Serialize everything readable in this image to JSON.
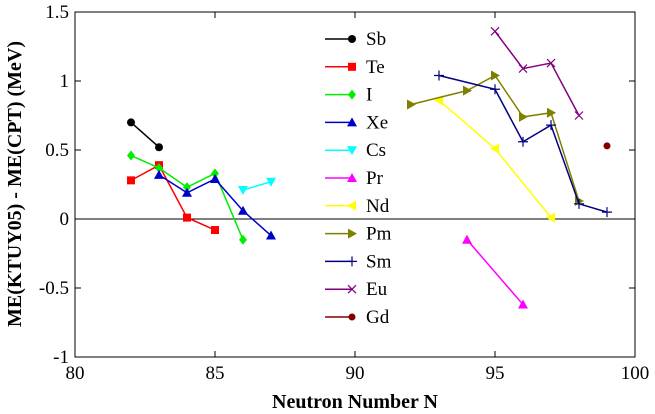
{
  "chart_data": {
    "type": "line",
    "xlabel": "Neutron Number N",
    "ylabel": "ME(KTUY05) - ME(CPT) (MeV)",
    "xlim": [
      80,
      100
    ],
    "ylim": [
      -1,
      1.5
    ],
    "xticks": [
      80,
      85,
      90,
      95,
      100
    ],
    "yticks": [
      -1,
      -0.5,
      0,
      0.5,
      1,
      1.5
    ],
    "xtick_labels": [
      "80",
      "85",
      "90",
      "95",
      "100"
    ],
    "ytick_labels": [
      "-1",
      "-0.5",
      "0",
      "0.5",
      "1",
      "1.5"
    ],
    "zero_line": true,
    "grid": false,
    "legend_position": "top-center",
    "series": [
      {
        "name": "Sb",
        "color": "#000000",
        "marker": "circle",
        "x": [
          82,
          83
        ],
        "y": [
          0.7,
          0.52
        ]
      },
      {
        "name": "Te",
        "color": "#ff0000",
        "marker": "square",
        "x": [
          82,
          83,
          84,
          85
        ],
        "y": [
          0.28,
          0.39,
          0.01,
          -0.08
        ]
      },
      {
        "name": "I",
        "color": "#00ee00",
        "marker": "diamond",
        "x": [
          82,
          83,
          84,
          85,
          86
        ],
        "y": [
          0.46,
          0.37,
          0.23,
          0.33,
          -0.15
        ]
      },
      {
        "name": "Xe",
        "color": "#0000cc",
        "marker": "triangle-up",
        "x": [
          83,
          84,
          85,
          86,
          87
        ],
        "y": [
          0.32,
          0.19,
          0.29,
          0.06,
          -0.12
        ]
      },
      {
        "name": "Cs",
        "color": "#00ffff",
        "marker": "triangle-down",
        "x": [
          86,
          87
        ],
        "y": [
          0.21,
          0.27
        ]
      },
      {
        "name": "Pr",
        "color": "#ff00ff",
        "marker": "triangle-up",
        "x": [
          94,
          96
        ],
        "y": [
          -0.15,
          -0.62
        ]
      },
      {
        "name": "Nd",
        "color": "#ffff00",
        "marker": "triangle-left",
        "x": [
          93,
          95,
          97
        ],
        "y": [
          0.86,
          0.51,
          0.01
        ]
      },
      {
        "name": "Pm",
        "color": "#808000",
        "marker": "triangle-right",
        "x": [
          92,
          94,
          95,
          96,
          97,
          98
        ],
        "y": [
          0.83,
          0.93,
          1.04,
          0.74,
          0.77,
          0.13
        ]
      },
      {
        "name": "Sm",
        "color": "#000080",
        "marker": "plus",
        "x": [
          93,
          95,
          96,
          97,
          98,
          99
        ],
        "y": [
          1.04,
          0.94,
          0.56,
          0.68,
          0.11,
          0.05
        ]
      },
      {
        "name": "Eu",
        "color": "#800080",
        "marker": "cross",
        "x": [
          95,
          96,
          97,
          98
        ],
        "y": [
          1.36,
          1.09,
          1.13,
          0.75
        ]
      },
      {
        "name": "Gd",
        "color": "#800000",
        "marker": "star",
        "x": [
          99
        ],
        "y": [
          0.53
        ]
      }
    ]
  }
}
